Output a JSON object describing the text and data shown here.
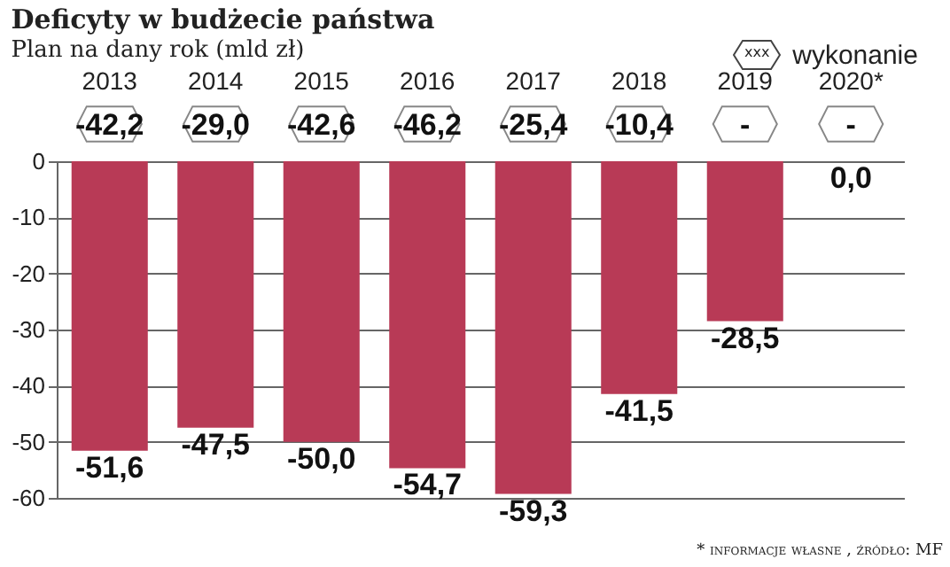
{
  "chart_data": {
    "type": "bar",
    "title": "Deficyty w budżecie państwa",
    "subtitle": "Plan na dany rok (mld zł)",
    "categories": [
      "2013",
      "2014",
      "2015",
      "2016",
      "2017",
      "2018",
      "2019",
      "2020*"
    ],
    "values": [
      -51.6,
      -47.5,
      -50.0,
      -54.7,
      -59.3,
      -41.5,
      -28.5,
      0.0
    ],
    "value_labels": [
      "-51,6",
      "-47,5",
      "-50,0",
      "-54,7",
      "-59,3",
      "-41,5",
      "-28,5",
      "0,0"
    ],
    "color": "#b83a56",
    "ylim": [
      -60,
      0
    ],
    "yticks": [
      0,
      -10,
      -20,
      -30,
      -40,
      -50,
      -60
    ],
    "grid": "y",
    "annotations": [
      "xxx",
      "wykonanie",
      "-42,2",
      "-29,0",
      "-42,6",
      "-46,2",
      "-25,4",
      "-10,4",
      "-",
      "-",
      "* informacje własne , źródło: MF"
    ]
  }
}
